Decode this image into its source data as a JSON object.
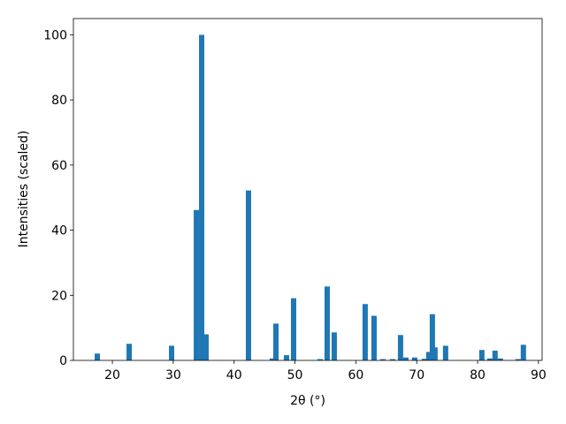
{
  "chart_data": {
    "type": "bar",
    "xlabel": "2θ (°)",
    "ylabel": "Intensities (scaled)",
    "x": [
      17.53,
      22.76,
      29.73,
      33.8,
      34.67,
      35.39,
      42.36,
      46.28,
      46.87,
      48.61,
      49.77,
      54.13,
      55.29,
      56.45,
      61.53,
      62.99,
      64.44,
      66.03,
      67.34,
      68.21,
      69.66,
      71.26,
      71.98,
      72.57,
      73.0,
      74.74,
      80.7,
      82.0,
      82.87,
      83.74,
      86.65,
      87.52
    ],
    "values": [
      2.1,
      5.1,
      4.5,
      46.2,
      100,
      8.0,
      52.2,
      0.6,
      11.3,
      1.6,
      19.1,
      0.4,
      22.7,
      8.6,
      17.3,
      13.7,
      0.4,
      0.4,
      7.8,
      0.9,
      0.9,
      0.5,
      2.6,
      14.2,
      4.0,
      4.5,
      3.2,
      0.6,
      3.0,
      0.6,
      0.4,
      4.8
    ],
    "bar_width": 0.87,
    "color": "#1f77b4",
    "xlim": [
      13.6,
      90.6
    ],
    "xticks": [
      20,
      30,
      40,
      50,
      60,
      70,
      80,
      90
    ],
    "ylim": [
      0,
      105
    ],
    "yticks": [
      0,
      20,
      40,
      60,
      80,
      100
    ]
  }
}
